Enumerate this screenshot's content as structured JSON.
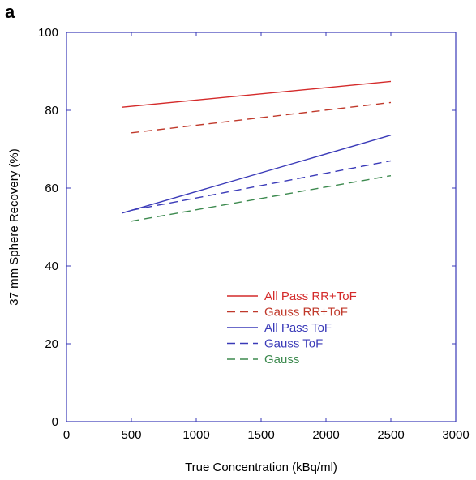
{
  "panel_label": "a",
  "chart_data": {
    "type": "line",
    "title": "",
    "xlabel": "True Concentration (kBq/ml)",
    "ylabel": "37 mm Sphere Recovery (%)",
    "xlim": [
      0,
      3000
    ],
    "ylim": [
      0,
      100
    ],
    "x_ticks": [
      0,
      500,
      1000,
      1500,
      2000,
      2500,
      3000
    ],
    "y_ticks": [
      0,
      20,
      40,
      60,
      80,
      100
    ],
    "grid": false,
    "legend_position": "center",
    "axis_color": "#3a3ab8",
    "series": [
      {
        "name": "All Pass RR+ToF",
        "color": "#d42a2a",
        "dash": "solid",
        "x": [
          430,
          2500
        ],
        "y": [
          80.8,
          87.4
        ]
      },
      {
        "name": "Gauss RR+ToF",
        "color": "#c0392b",
        "dash": "dashed",
        "x": [
          500,
          2500
        ],
        "y": [
          74.2,
          82.0
        ]
      },
      {
        "name": "All Pass ToF",
        "color": "#3a3ab8",
        "dash": "solid",
        "x": [
          430,
          2500
        ],
        "y": [
          53.6,
          73.6
        ]
      },
      {
        "name": "Gauss ToF",
        "color": "#3a3ab8",
        "dash": "dashed",
        "x": [
          500,
          2500
        ],
        "y": [
          54.3,
          67.0
        ]
      },
      {
        "name": "Gauss",
        "color": "#3d8a4f",
        "dash": "dashed",
        "x": [
          500,
          2500
        ],
        "y": [
          51.5,
          63.2
        ]
      }
    ]
  }
}
